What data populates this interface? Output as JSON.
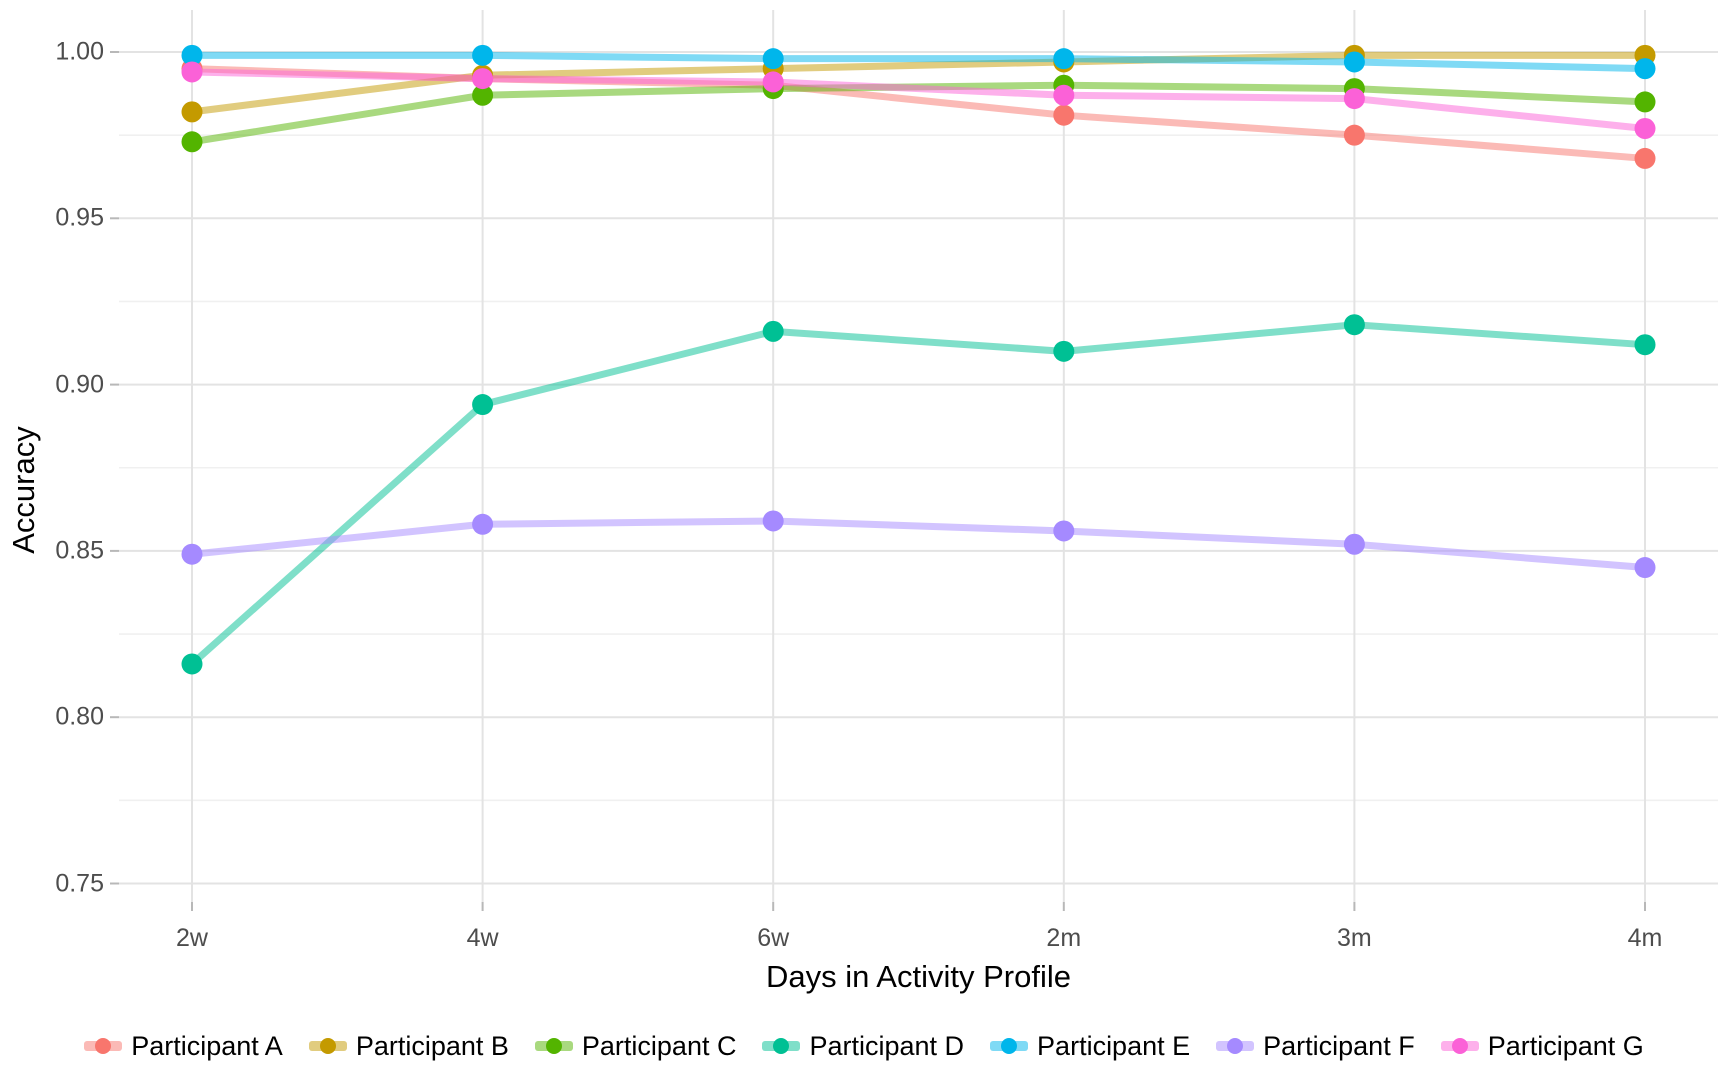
{
  "chart_data": {
    "type": "line",
    "title": "",
    "xlabel": "Days in Activity Profile",
    "ylabel": "Accuracy",
    "categories": [
      "2w",
      "4w",
      "6w",
      "2m",
      "3m",
      "4m"
    ],
    "ytick_labels": [
      "1.00",
      "0.95",
      "0.90",
      "0.85",
      "0.80",
      "0.75"
    ],
    "ytick_values": [
      1.0,
      0.95,
      0.9,
      0.85,
      0.8,
      0.75
    ],
    "minor_gridline_values": [
      0.975,
      0.925,
      0.875,
      0.825,
      0.775
    ],
    "ylim": [
      0.747,
      1.003
    ],
    "grid": "horizontal major+minor, vertical major; white background (minimal theme)",
    "legend_position": "bottom",
    "series": [
      {
        "name": "Participant A",
        "color": "#F8766D",
        "values": [
          0.995,
          0.992,
          0.99,
          0.981,
          0.975,
          0.968
        ]
      },
      {
        "name": "Participant B",
        "color": "#C49A00",
        "values": [
          0.982,
          0.993,
          0.995,
          0.997,
          0.999,
          0.999
        ]
      },
      {
        "name": "Participant C",
        "color": "#53B400",
        "values": [
          0.973,
          0.987,
          0.989,
          0.99,
          0.989,
          0.985
        ]
      },
      {
        "name": "Participant D",
        "color": "#00C094",
        "values": [
          0.816,
          0.894,
          0.916,
          0.91,
          0.918,
          0.912
        ]
      },
      {
        "name": "Participant E",
        "color": "#00B6EB",
        "values": [
          0.999,
          0.999,
          0.998,
          0.998,
          0.997,
          0.995
        ]
      },
      {
        "name": "Participant F",
        "color": "#A58AFF",
        "values": [
          0.849,
          0.858,
          0.859,
          0.856,
          0.852,
          0.845
        ]
      },
      {
        "name": "Participant G",
        "color": "#FB61D7",
        "values": [
          0.994,
          0.992,
          0.991,
          0.987,
          0.986,
          0.977
        ]
      }
    ]
  },
  "style": {
    "background": "#FFFFFF",
    "grid_major_color": "#E3E3E3",
    "grid_minor_color": "#F0F0F0",
    "tick_mark_color": "#B8B8B8",
    "tick_label_color": "#4D4D4D",
    "axis_title_color": "#000000",
    "line_opacity": 0.5
  }
}
